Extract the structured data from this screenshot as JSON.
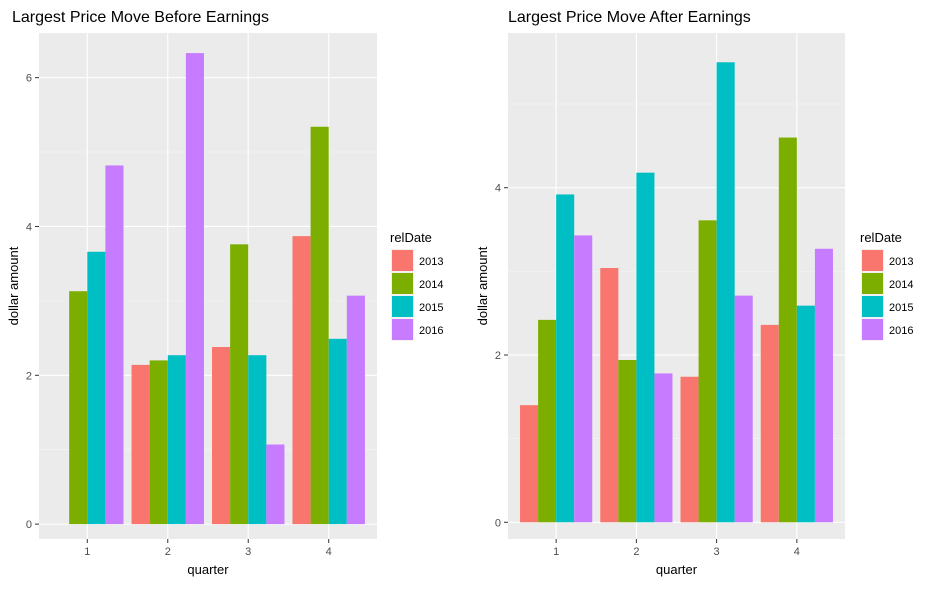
{
  "chart_data": [
    {
      "type": "bar",
      "title": "Largest Price Move Before Earnings",
      "xlabel": "quarter",
      "ylabel": "dollar amount",
      "categories": [
        "1",
        "2",
        "3",
        "4"
      ],
      "ylim": [
        -0.2,
        6.6
      ],
      "yticks": [
        0,
        2,
        4,
        6
      ],
      "legend_title": "relDate",
      "legend_position": "right",
      "grid": true,
      "series": [
        {
          "name": "2013",
          "color": "#F8766D",
          "values": [
            null,
            2.14,
            2.38,
            3.87
          ]
        },
        {
          "name": "2014",
          "color": "#7CAE00",
          "values": [
            3.13,
            2.2,
            3.76,
            5.34
          ]
        },
        {
          "name": "2015",
          "color": "#00BFC4",
          "values": [
            3.66,
            2.27,
            2.27,
            2.49
          ]
        },
        {
          "name": "2016",
          "color": "#C77CFF",
          "values": [
            4.82,
            6.33,
            1.07,
            3.07
          ]
        }
      ]
    },
    {
      "type": "bar",
      "title": "Largest Price Move After Earnings",
      "xlabel": "quarter",
      "ylabel": "dollar amount",
      "categories": [
        "1",
        "2",
        "3",
        "4"
      ],
      "ylim": [
        -0.2,
        5.85
      ],
      "yticks": [
        0,
        2,
        4
      ],
      "legend_title": "relDate",
      "legend_position": "right",
      "grid": true,
      "series": [
        {
          "name": "2013",
          "color": "#F8766D",
          "values": [
            1.4,
            3.04,
            1.74,
            2.36
          ]
        },
        {
          "name": "2014",
          "color": "#7CAE00",
          "values": [
            2.42,
            1.94,
            3.61,
            4.6
          ]
        },
        {
          "name": "2015",
          "color": "#00BFC4",
          "values": [
            3.92,
            4.18,
            5.5,
            2.59
          ]
        },
        {
          "name": "2016",
          "color": "#C77CFF",
          "values": [
            3.43,
            1.78,
            2.71,
            3.27
          ]
        }
      ]
    }
  ]
}
